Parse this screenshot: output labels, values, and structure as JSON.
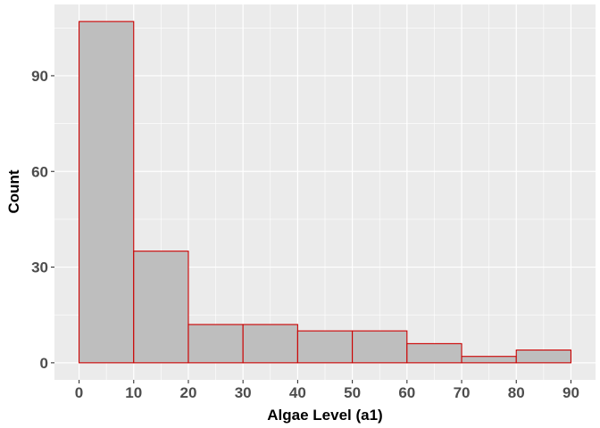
{
  "chart_data": {
    "type": "bar",
    "title": "",
    "xlabel": "Algae Level (a1)",
    "ylabel": "Count",
    "bins": [
      {
        "start": 0,
        "end": 10,
        "count": 107
      },
      {
        "start": 10,
        "end": 20,
        "count": 35
      },
      {
        "start": 20,
        "end": 30,
        "count": 12
      },
      {
        "start": 30,
        "end": 40,
        "count": 12
      },
      {
        "start": 40,
        "end": 50,
        "count": 10
      },
      {
        "start": 50,
        "end": 60,
        "count": 10
      },
      {
        "start": 60,
        "end": 70,
        "count": 6
      },
      {
        "start": 70,
        "end": 80,
        "count": 2
      },
      {
        "start": 80,
        "end": 90,
        "count": 4
      }
    ],
    "xticks": [
      "0",
      "10",
      "20",
      "30",
      "40",
      "50",
      "60",
      "70",
      "80",
      "90"
    ],
    "yticks": [
      "0",
      "30",
      "60",
      "90"
    ],
    "xlim": [
      -4.5,
      94.5
    ],
    "ylim": [
      -5.35,
      112.35
    ],
    "grid": true,
    "colors": {
      "panel_background": "#ebebeb",
      "grid_major": "#ffffff",
      "bar_fill": "#bebebe",
      "bar_outline": "#cc0000",
      "tick_label": "#4d4d4d",
      "axis_title": "#000000"
    }
  }
}
